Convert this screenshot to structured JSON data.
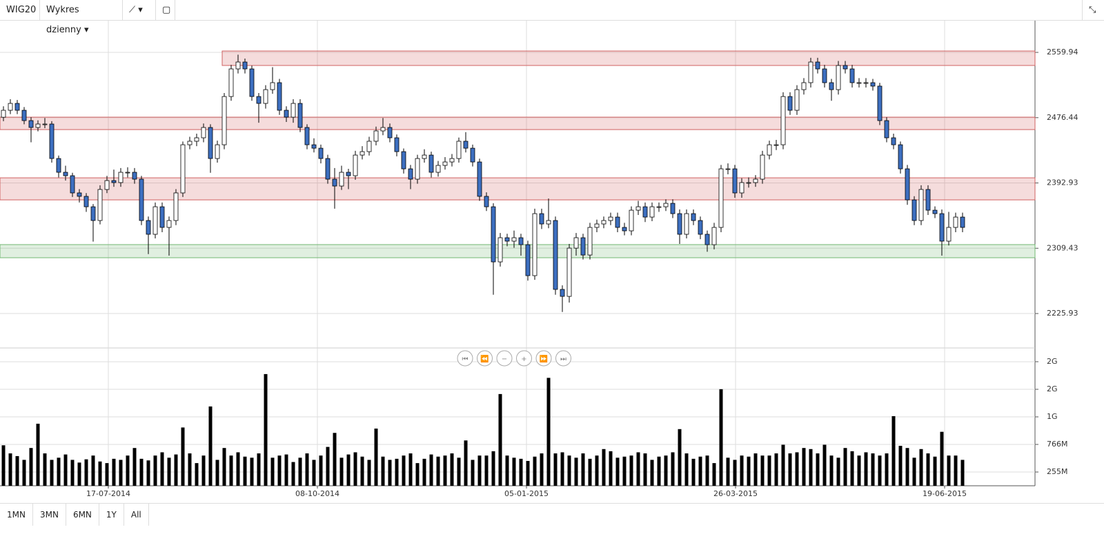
{
  "toolbar": {
    "symbol": "WIG20",
    "interval": "Wykres dzienny"
  },
  "range_buttons": [
    "1MN",
    "3MN",
    "6MN",
    "1Y",
    "All"
  ],
  "chart_data": {
    "type": "candlestick",
    "up_color": "#ffffff",
    "down_color": "#3d6fc0",
    "grid": true,
    "xlim": [
      -0.5,
      149.5
    ],
    "xticks": [
      {
        "value": 15.2,
        "label": "17-07-2014"
      },
      {
        "value": 45.5,
        "label": "08-10-2014"
      },
      {
        "value": 75.8,
        "label": "05-01-2015"
      },
      {
        "value": 106.1,
        "label": "26-03-2015"
      },
      {
        "value": 136.4,
        "label": "19-06-2015"
      }
    ],
    "ylim": [
      2181.9,
      2600.5
    ],
    "yticks": [
      2225.93,
      2309.43,
      2392.93,
      2476.44,
      2559.94
    ],
    "zones": [
      {
        "from": 2543.2,
        "to": 2561.7,
        "start": 31.7,
        "color": "#d06060"
      },
      {
        "from": 2461.2,
        "to": 2477.1,
        "color": "#d06060"
      },
      {
        "from": 2371.3,
        "to": 2399.5,
        "color": "#d06060"
      },
      {
        "from": 2297.3,
        "to": 2314.1,
        "color": "#72b872"
      }
    ],
    "open": [
      2477.0,
      2485.9,
      2494.7,
      2485.9,
      2472.7,
      2463.9,
      2468.3,
      2468.3,
      2424.2,
      2406.6,
      2402.2,
      2380.2,
      2375.8,
      2362.5,
      2344.9,
      2384.6,
      2396.0,
      2393.4,
      2406.6,
      2406.6,
      2397.8,
      2344.9,
      2327.3,
      2362.5,
      2336.1,
      2344.9,
      2380.2,
      2441.8,
      2446.3,
      2450.7,
      2463.9,
      2424.2,
      2441.8,
      2503.5,
      2538.8,
      2547.6,
      2538.8,
      2503.5,
      2494.7,
      2512.3,
      2521.2,
      2485.9,
      2477.1,
      2494.7,
      2463.9,
      2441.8,
      2437.4,
      2424.2,
      2397.8,
      2389.0,
      2406.6,
      2402.2,
      2428.6,
      2433.0,
      2446.3,
      2459.5,
      2463.9,
      2450.7,
      2433.0,
      2411.0,
      2397.8,
      2424.2,
      2428.6,
      2406.6,
      2415.4,
      2419.8,
      2424.2,
      2446.3,
      2437.4,
      2419.8,
      2375.8,
      2362.5,
      2292.0,
      2322.9,
      2318.5,
      2322.9,
      2314.0,
      2274.4,
      2353.7,
      2340.5,
      2344.9,
      2256.8,
      2247.9,
      2309.6,
      2322.9,
      2300.8,
      2336.1,
      2340.5,
      2344.9,
      2349.3,
      2336.1,
      2331.7,
      2358.1,
      2362.5,
      2349.3,
      2362.5,
      2362.5,
      2366.9,
      2353.7,
      2327.3,
      2353.7,
      2344.9,
      2327.3,
      2314.0,
      2336.1,
      2411.0,
      2411.0,
      2380.2,
      2393.4,
      2393.4,
      2397.8,
      2428.6,
      2441.8,
      2441.8,
      2503.5,
      2485.9,
      2512.3,
      2521.2,
      2547.6,
      2538.8,
      2521.2,
      2512.3,
      2543.2,
      2538.8,
      2521.2,
      2521.2,
      2521.2,
      2516.8,
      2472.7,
      2450.7,
      2441.8,
      2411.0,
      2371.3,
      2344.9,
      2384.6,
      2358.1,
      2353.7,
      2318.5,
      2336.1,
      2349.3
    ],
    "high": [
      2491,
      2500,
      2499,
      2490,
      2477,
      2473,
      2476,
      2472,
      2428,
      2415,
      2406,
      2385,
      2380,
      2366,
      2390,
      2402,
      2410,
      2412,
      2413,
      2412,
      2402,
      2350,
      2368,
      2368,
      2350,
      2385,
      2446,
      2452,
      2456,
      2469,
      2468,
      2447,
      2508,
      2544,
      2557,
      2552,
      2543,
      2508,
      2518,
      2541,
      2526,
      2491,
      2500,
      2500,
      2468,
      2450,
      2442,
      2429,
      2412,
      2415,
      2411,
      2434,
      2440,
      2452,
      2465,
      2476,
      2469,
      2455,
      2437,
      2416,
      2429,
      2436,
      2433,
      2421,
      2426,
      2430,
      2451,
      2458,
      2442,
      2424,
      2381,
      2367,
      2329,
      2328,
      2332,
      2328,
      2319,
      2360,
      2360,
      2373,
      2350,
      2262,
      2315,
      2329,
      2328,
      2342,
      2346,
      2350,
      2355,
      2355,
      2342,
      2363,
      2370,
      2368,
      2368,
      2368,
      2372,
      2372,
      2359,
      2359,
      2359,
      2350,
      2332,
      2342,
      2416,
      2418,
      2416,
      2399,
      2400,
      2403,
      2434,
      2447,
      2448,
      2509,
      2509,
      2518,
      2527,
      2553,
      2553,
      2544,
      2526,
      2549,
      2549,
      2544,
      2527,
      2527,
      2526,
      2521,
      2477,
      2456,
      2446,
      2416,
      2376,
      2390,
      2390,
      2363,
      2359,
      2356,
      2355,
      2355
    ],
    "low": [
      2472,
      2481,
      2481,
      2468,
      2445,
      2459,
      2463,
      2419,
      2400,
      2396,
      2375,
      2368,
      2356,
      2318,
      2340,
      2380,
      2388,
      2388,
      2400,
      2392,
      2339,
      2302,
      2322,
      2330,
      2300,
      2339,
      2375,
      2436,
      2440,
      2445,
      2406,
      2419,
      2436,
      2498,
      2533,
      2533,
      2498,
      2470,
      2488,
      2507,
      2480,
      2471,
      2470,
      2458,
      2436,
      2432,
      2418,
      2392,
      2360,
      2384,
      2385,
      2397,
      2423,
      2428,
      2441,
      2454,
      2445,
      2427,
      2405,
      2385,
      2392,
      2419,
      2400,
      2401,
      2410,
      2414,
      2419,
      2432,
      2414,
      2370,
      2357,
      2250,
      2286,
      2312,
      2310,
      2300,
      2268,
      2269,
      2334,
      2335,
      2250,
      2228,
      2240,
      2300,
      2295,
      2295,
      2330,
      2335,
      2339,
      2330,
      2326,
      2326,
      2352,
      2343,
      2344,
      2356,
      2357,
      2348,
      2315,
      2322,
      2339,
      2321,
      2305,
      2308,
      2330,
      2404,
      2374,
      2374,
      2387,
      2388,
      2392,
      2423,
      2435,
      2436,
      2480,
      2480,
      2506,
      2515,
      2533,
      2515,
      2498,
      2506,
      2533,
      2515,
      2515,
      2515,
      2511,
      2467,
      2445,
      2436,
      2405,
      2365,
      2339,
      2339,
      2352,
      2348,
      2300,
      2313,
      2330,
      2330
    ],
    "close": [
      2485.9,
      2494.7,
      2485.9,
      2472.7,
      2463.9,
      2468.3,
      2468.3,
      2424.2,
      2406.6,
      2402.2,
      2380.2,
      2375.8,
      2362.5,
      2344.9,
      2384.6,
      2396.0,
      2393.4,
      2406.6,
      2406.6,
      2397.8,
      2344.9,
      2327.3,
      2362.5,
      2336.1,
      2344.9,
      2380.2,
      2441.8,
      2446.3,
      2450.7,
      2463.9,
      2424.2,
      2441.8,
      2503.5,
      2538.8,
      2547.6,
      2538.8,
      2503.5,
      2494.7,
      2512.3,
      2521.2,
      2485.9,
      2477.1,
      2494.7,
      2463.9,
      2441.8,
      2437.4,
      2424.2,
      2397.8,
      2389.0,
      2406.6,
      2402.2,
      2428.6,
      2433.0,
      2446.3,
      2459.5,
      2463.9,
      2450.7,
      2433.0,
      2411.0,
      2397.8,
      2424.2,
      2428.6,
      2406.6,
      2415.4,
      2419.8,
      2424.2,
      2446.3,
      2437.4,
      2419.8,
      2375.8,
      2362.5,
      2292.0,
      2322.9,
      2318.5,
      2322.9,
      2314.0,
      2274.4,
      2353.7,
      2340.5,
      2344.9,
      2256.8,
      2247.9,
      2309.6,
      2322.9,
      2300.8,
      2336.1,
      2340.5,
      2344.9,
      2349.3,
      2336.1,
      2331.7,
      2358.1,
      2362.5,
      2349.3,
      2362.5,
      2362.5,
      2366.9,
      2353.7,
      2327.3,
      2353.7,
      2344.9,
      2327.3,
      2314.0,
      2336.1,
      2411.0,
      2411.0,
      2380.2,
      2393.4,
      2393.4,
      2397.8,
      2428.6,
      2441.8,
      2441.8,
      2503.5,
      2485.9,
      2512.3,
      2521.2,
      2547.6,
      2538.8,
      2521.2,
      2512.3,
      2543.2,
      2538.8,
      2521.2,
      2521.2,
      2521.2,
      2516.8,
      2472.7,
      2450.7,
      2441.8,
      2411.0,
      2371.3,
      2344.9,
      2384.6,
      2358.1,
      2353.7,
      2318.5,
      2336.1,
      2349.3,
      2336.1
    ],
    "volume": {
      "color": "#000000",
      "ylim": [
        0,
        2554
      ],
      "yticks": [
        {
          "value": 255,
          "label": "255M"
        },
        {
          "value": 766,
          "label": "766M"
        },
        {
          "value": 1277,
          "label": "1G"
        },
        {
          "value": 1788,
          "label": "2G"
        },
        {
          "value": 2299,
          "label": "2G"
        }
      ],
      "values": [
        750,
        600,
        550,
        480,
        700,
        1150,
        600,
        480,
        520,
        580,
        480,
        430,
        490,
        560,
        450,
        420,
        500,
        480,
        560,
        700,
        500,
        470,
        560,
        620,
        520,
        580,
        1080,
        600,
        420,
        560,
        1470,
        480,
        700,
        560,
        620,
        540,
        520,
        600,
        2070,
        520,
        560,
        580,
        440,
        520,
        600,
        480,
        560,
        720,
        980,
        520,
        580,
        620,
        540,
        480,
        1060,
        540,
        480,
        500,
        560,
        600,
        420,
        500,
        580,
        540,
        560,
        600,
        520,
        840,
        480,
        560,
        560,
        640,
        1700,
        560,
        520,
        500,
        460,
        540,
        600,
        2000,
        600,
        620,
        560,
        520,
        600,
        500,
        560,
        680,
        640,
        520,
        540,
        560,
        620,
        600,
        480,
        540,
        560,
        620,
        1050,
        600,
        500,
        540,
        560,
        420,
        1790,
        520,
        480,
        560,
        540,
        600,
        560,
        560,
        600,
        760,
        600,
        620,
        700,
        680,
        600,
        760,
        560,
        520,
        700,
        640,
        560,
        620,
        600,
        560,
        600,
        1290,
        740,
        700,
        520,
        680,
        600,
        540,
        1000,
        560,
        560,
        480
      ]
    }
  }
}
